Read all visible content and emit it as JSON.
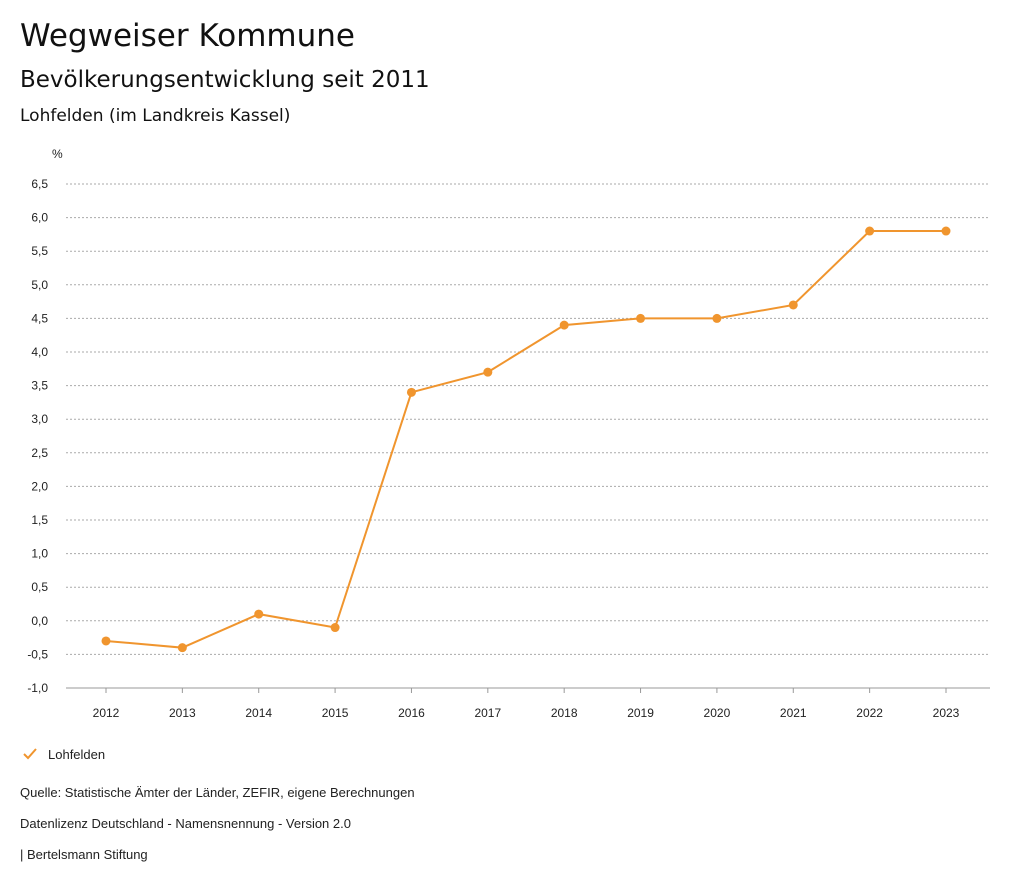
{
  "header": {
    "title": "Wegweiser Kommune",
    "subtitle": "Bevölkerungsentwicklung seit 2011",
    "region": "Lohfelden (im Landkreis Kassel)"
  },
  "colors": {
    "series": "#f0952e",
    "grid": "#aaaaaa",
    "axis": "#999999"
  },
  "chart_data": {
    "type": "line",
    "title": "Bevölkerungsentwicklung seit 2011",
    "xlabel": "",
    "ylabel": "%",
    "ylim": [
      -1.0,
      6.5
    ],
    "yticks": [
      "6,5",
      "6,0",
      "5,5",
      "5,0",
      "4,5",
      "4,0",
      "3,5",
      "3,0",
      "2,5",
      "2,0",
      "1,5",
      "1,0",
      "0,5",
      "0,0",
      "-0,5",
      "-1,0"
    ],
    "ytick_values": [
      6.5,
      6.0,
      5.5,
      5.0,
      4.5,
      4.0,
      3.5,
      3.0,
      2.5,
      2.0,
      1.5,
      1.0,
      0.5,
      0.0,
      -0.5,
      -1.0
    ],
    "categories": [
      "2012",
      "2013",
      "2014",
      "2015",
      "2016",
      "2017",
      "2018",
      "2019",
      "2020",
      "2021",
      "2022",
      "2023"
    ],
    "series": [
      {
        "name": "Lohfelden",
        "values": [
          -0.3,
          -0.4,
          0.1,
          -0.1,
          3.4,
          3.7,
          4.4,
          4.5,
          4.5,
          4.7,
          5.8,
          5.8
        ]
      }
    ],
    "grid": true,
    "legend": "bottom-left"
  },
  "legend": {
    "label": "Lohfelden"
  },
  "footer": {
    "source": "Quelle: Statistische Ämter der Länder, ZEFIR, eigene Berechnungen",
    "license": "Datenlizenz Deutschland - Namensnennung - Version 2.0",
    "brand": "| Bertelsmann Stiftung"
  }
}
